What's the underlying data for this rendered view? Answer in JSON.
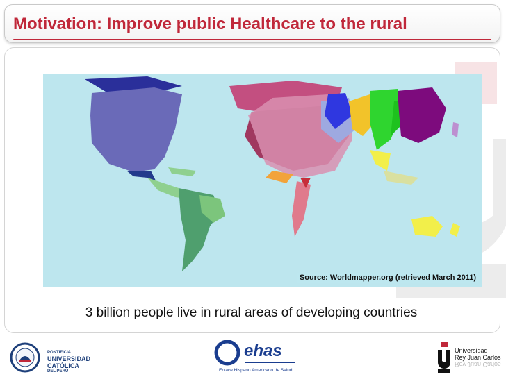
{
  "slide": {
    "title": "Motivation: Improve public Healthcare to the rural",
    "map_source": "Source: Worldmapper.org (retrieved March 2011)",
    "caption": "3 billion people live in rural areas of developing countries"
  },
  "footer": {
    "pucp": {
      "line1": "PONTIFICIA",
      "line2": "UNIVERSIDAD",
      "line3": "CATÓLICA",
      "line4": "DEL PERÚ"
    },
    "ehas": {
      "name": "ehas",
      "subtitle": "Enlace Hispano Americano de Salud"
    },
    "urjc": {
      "line1": "Universidad",
      "line2": "Rey Juan Carlos"
    }
  },
  "colors": {
    "title_red": "#c0283a",
    "ocean": "#bde6ee",
    "north_america": "#6a6ab8",
    "europe": "#c34f80",
    "africa": "#e07a8c",
    "south_america": "#4f9f6e",
    "india": "#2fd52f",
    "china": "#7d0b7d",
    "australia": "#f2ef4a"
  }
}
